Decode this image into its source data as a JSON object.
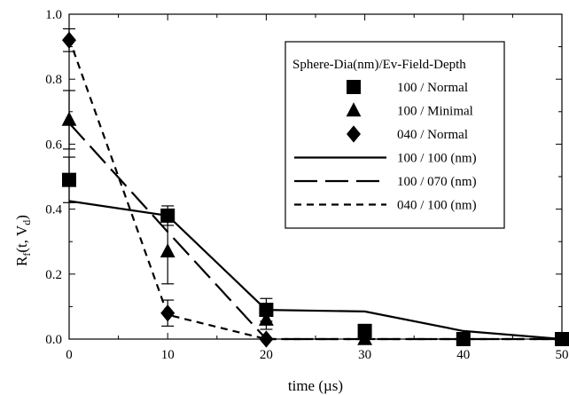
{
  "chart_data": {
    "type": "scatter",
    "xlabel": "time (µs)",
    "ylabel_main": "R",
    "ylabel_sub_f": "f",
    "ylabel_paren_open": "(t, V",
    "ylabel_sub_d": "d",
    "ylabel_paren_close": ")",
    "xlim": [
      0,
      50
    ],
    "ylim": [
      0,
      1.0
    ],
    "x_ticks": [
      "0",
      "10",
      "20",
      "30",
      "40",
      "50"
    ],
    "y_ticks": [
      "0.0",
      "0.2",
      "0.4",
      "0.6",
      "0.8",
      "1.0"
    ],
    "grid": false,
    "legend_position": "top-right",
    "legend_title": "Sphere-Dia(nm)/Ev-Field-Depth",
    "marker_series": [
      {
        "name": "100 / Normal",
        "marker": "square",
        "points": [
          {
            "x": 0,
            "y": 0.49,
            "err": 0.07
          },
          {
            "x": 10,
            "y": 0.38,
            "err": 0.03
          },
          {
            "x": 20,
            "y": 0.09,
            "err": 0.035
          },
          {
            "x": 30,
            "y": 0.025,
            "err": 0.02
          },
          {
            "x": 40,
            "y": 0.0,
            "err": 0.0
          },
          {
            "x": 50,
            "y": 0.0,
            "err": 0.0
          }
        ]
      },
      {
        "name": "100 / Minimal",
        "marker": "triangle",
        "points": [
          {
            "x": 0,
            "y": 0.675,
            "err": 0.09
          },
          {
            "x": 10,
            "y": 0.27,
            "err": 0.1
          },
          {
            "x": 20,
            "y": 0.06,
            "err": 0.03
          },
          {
            "x": 30,
            "y": 0.0,
            "err": 0.0
          }
        ]
      },
      {
        "name": "040 / Normal",
        "marker": "diamond",
        "points": [
          {
            "x": 0,
            "y": 0.92,
            "err": 0.035
          },
          {
            "x": 10,
            "y": 0.08,
            "err": 0.04
          },
          {
            "x": 20,
            "y": 0.0,
            "err": 0.0
          }
        ]
      }
    ],
    "line_series": [
      {
        "name": "100 / 100 (nm)",
        "style": "solid",
        "x": [
          0,
          10,
          20,
          30,
          40,
          50
        ],
        "y": [
          0.425,
          0.38,
          0.09,
          0.085,
          0.025,
          0.0
        ]
      },
      {
        "name": "100 / 070 (nm)",
        "style": "long-dash",
        "x": [
          0,
          10,
          20,
          30,
          40,
          50
        ],
        "y": [
          0.665,
          0.33,
          0.0,
          0.0,
          0.0,
          0.0
        ]
      },
      {
        "name": "040 / 100 (nm)",
        "style": "short-dash",
        "x": [
          0,
          10,
          20,
          30,
          40,
          50
        ],
        "y": [
          0.925,
          0.075,
          0.0,
          0.0,
          0.0,
          0.0
        ]
      }
    ]
  }
}
